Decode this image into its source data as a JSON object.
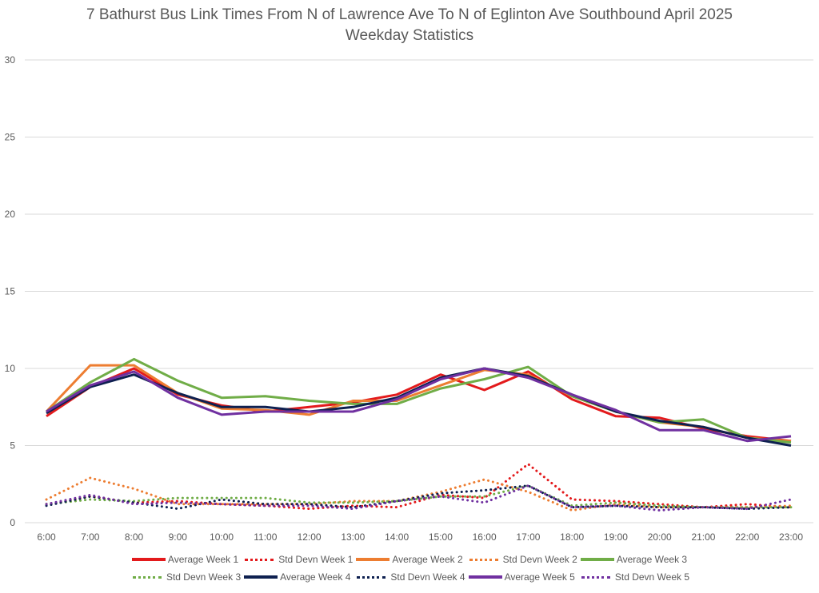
{
  "chart_data": {
    "type": "line",
    "title": "7 Bathurst Bus Link Times From N of Lawrence Ave To N of Eglinton Ave Southbound April 2025",
    "subtitle": "Weekday Statistics",
    "xlabel": "",
    "ylabel": "",
    "ylim": [
      0,
      30
    ],
    "yticks": [
      0,
      5,
      10,
      15,
      20,
      25,
      30
    ],
    "grid": true,
    "legend_position": "bottom",
    "categories": [
      "6:00",
      "7:00",
      "8:00",
      "9:00",
      "10:00",
      "11:00",
      "12:00",
      "13:00",
      "14:00",
      "15:00",
      "16:00",
      "17:00",
      "18:00",
      "19:00",
      "20:00",
      "21:00",
      "22:00",
      "23:00"
    ],
    "series": [
      {
        "name": "Average Week 1",
        "color": "#e31a1c",
        "style": "solid",
        "values": [
          6.9,
          8.8,
          10.0,
          8.3,
          7.6,
          7.2,
          7.5,
          7.8,
          8.3,
          9.6,
          8.6,
          9.8,
          8.0,
          6.9,
          6.8,
          6.1,
          5.6,
          5.3
        ]
      },
      {
        "name": "Std Devn Week 1",
        "color": "#e31a1c",
        "style": "dotted",
        "values": [
          1.2,
          1.7,
          1.3,
          1.4,
          1.2,
          1.1,
          0.9,
          1.1,
          1.0,
          1.8,
          1.6,
          3.8,
          1.5,
          1.4,
          1.2,
          1.0,
          1.2,
          1.0
        ]
      },
      {
        "name": "Average Week 2",
        "color": "#ed7d31",
        "style": "solid",
        "values": [
          7.2,
          10.2,
          10.2,
          8.4,
          7.4,
          7.3,
          7.0,
          7.9,
          7.9,
          8.9,
          9.9,
          9.6,
          8.2,
          7.2,
          6.5,
          6.2,
          5.5,
          5.3
        ]
      },
      {
        "name": "Std Devn Week 2",
        "color": "#ed7d31",
        "style": "dotted",
        "values": [
          1.5,
          2.9,
          2.2,
          1.2,
          1.2,
          1.2,
          1.2,
          1.4,
          1.4,
          2.0,
          2.8,
          2.0,
          0.8,
          1.2,
          1.0,
          1.0,
          1.0,
          1.1
        ]
      },
      {
        "name": "Average Week 3",
        "color": "#70ad47",
        "style": "solid",
        "values": [
          7.2,
          9.1,
          10.6,
          9.2,
          8.1,
          8.2,
          7.9,
          7.7,
          7.7,
          8.7,
          9.3,
          10.1,
          8.2,
          7.2,
          6.5,
          6.7,
          5.5,
          5.2
        ]
      },
      {
        "name": "Std Devn Week 3",
        "color": "#70ad47",
        "style": "dotted",
        "values": [
          1.2,
          1.5,
          1.4,
          1.6,
          1.6,
          1.6,
          1.3,
          1.3,
          1.4,
          1.7,
          1.7,
          2.4,
          1.1,
          1.3,
          1.1,
          1.0,
          1.0,
          1.0
        ]
      },
      {
        "name": "Average Week 4",
        "color": "#0e2050",
        "style": "solid",
        "values": [
          7.1,
          8.8,
          9.6,
          8.4,
          7.5,
          7.5,
          7.2,
          7.5,
          8.1,
          9.4,
          10.0,
          9.5,
          8.3,
          7.2,
          6.6,
          6.2,
          5.5,
          5.0
        ]
      },
      {
        "name": "Std Devn Week 4",
        "color": "#0e2050",
        "style": "dotted",
        "values": [
          1.1,
          1.7,
          1.3,
          0.9,
          1.5,
          1.2,
          1.2,
          1.0,
          1.4,
          1.9,
          2.1,
          2.4,
          1.0,
          1.1,
          1.0,
          1.0,
          0.9,
          1.0
        ]
      },
      {
        "name": "Average Week 5",
        "color": "#7030a0",
        "style": "solid",
        "values": [
          7.2,
          8.9,
          9.8,
          8.1,
          7.0,
          7.2,
          7.2,
          7.2,
          8.0,
          9.3,
          10.0,
          9.4,
          8.3,
          7.3,
          6.0,
          6.0,
          5.3,
          5.6
        ]
      },
      {
        "name": "Std Devn Week 5",
        "color": "#7030a0",
        "style": "dotted",
        "values": [
          1.2,
          1.8,
          1.2,
          1.3,
          1.2,
          1.1,
          1.1,
          0.9,
          1.4,
          1.7,
          1.3,
          2.4,
          1.0,
          1.1,
          0.8,
          1.0,
          0.9,
          1.5
        ]
      }
    ]
  }
}
